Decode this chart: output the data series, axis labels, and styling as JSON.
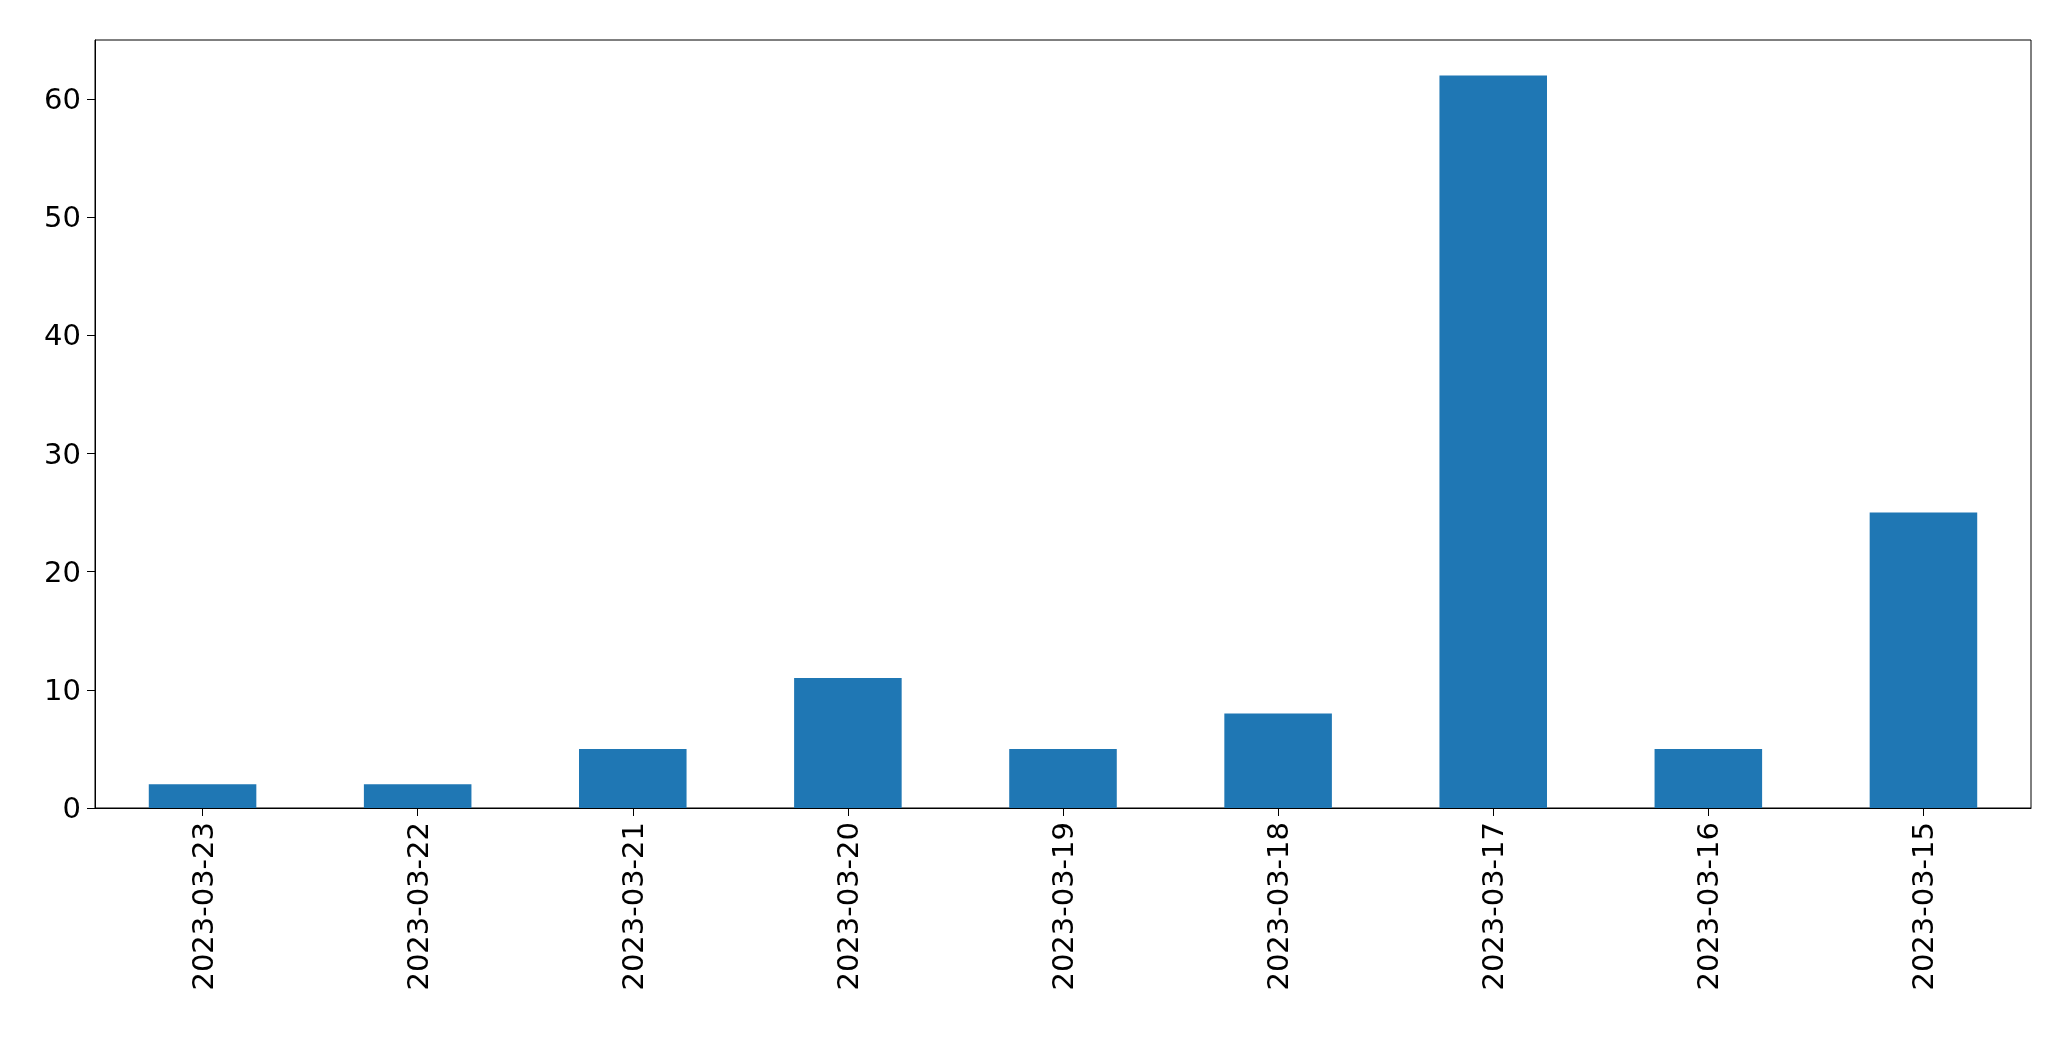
{
  "chart_data": {
    "type": "bar",
    "categories": [
      "2023-03-23",
      "2023-03-22",
      "2023-03-21",
      "2023-03-20",
      "2023-03-19",
      "2023-03-18",
      "2023-03-17",
      "2023-03-16",
      "2023-03-15"
    ],
    "values": [
      2,
      2,
      5,
      11,
      5,
      8,
      62,
      5,
      25
    ],
    "color": "#1f77b4",
    "ylim": [
      0,
      65
    ],
    "yticks": [
      0,
      10,
      20,
      30,
      40,
      50,
      60
    ],
    "grid": false
  }
}
